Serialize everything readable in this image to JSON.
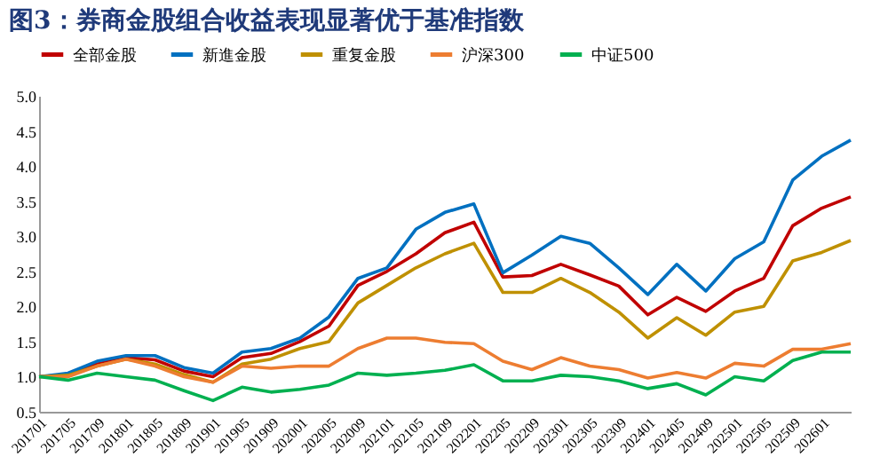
{
  "chart_data": {
    "type": "line",
    "title": "图3：券商金股组合收益表现显著优于基准指数",
    "categories": [
      "201701",
      "201705",
      "201709",
      "201801",
      "201805",
      "201809",
      "201901",
      "201905",
      "201909",
      "202001",
      "202005",
      "202009",
      "202101",
      "202105",
      "202109",
      "202201",
      "202205",
      "202209",
      "202301",
      "202305",
      "202309",
      "202401",
      "202405",
      "202409",
      "202501",
      "202505",
      "202509",
      "202601",
      null
    ],
    "series": [
      {
        "name": "全部金股",
        "color": "#c00000",
        "values": [
          1.0,
          1.03,
          1.18,
          1.27,
          1.24,
          1.08,
          1.0,
          1.27,
          1.33,
          1.5,
          1.72,
          2.3,
          2.5,
          2.75,
          3.05,
          3.2,
          2.42,
          2.44,
          2.6,
          2.45,
          2.29,
          1.88,
          2.13,
          1.93,
          2.22,
          2.4,
          3.15,
          3.4,
          3.56
        ]
      },
      {
        "name": "新進金股",
        "color": "#0070c0",
        "values": [
          1.0,
          1.05,
          1.22,
          1.3,
          1.3,
          1.13,
          1.05,
          1.35,
          1.4,
          1.55,
          1.85,
          2.4,
          2.55,
          3.1,
          3.34,
          3.46,
          2.48,
          2.73,
          3.0,
          2.9,
          2.55,
          2.17,
          2.6,
          2.22,
          2.68,
          2.92,
          3.8,
          4.14,
          4.37
        ]
      },
      {
        "name": "重复金股",
        "color": "#bf9000",
        "values": [
          1.0,
          1.02,
          1.15,
          1.25,
          1.18,
          1.03,
          0.92,
          1.18,
          1.25,
          1.4,
          1.5,
          2.05,
          2.3,
          2.55,
          2.75,
          2.9,
          2.2,
          2.2,
          2.4,
          2.2,
          1.92,
          1.55,
          1.84,
          1.59,
          1.92,
          2.0,
          2.65,
          2.77,
          2.94
        ]
      },
      {
        "name": "沪深300",
        "color": "#ed7d31",
        "values": [
          1.0,
          1.0,
          1.15,
          1.25,
          1.15,
          1.0,
          0.92,
          1.15,
          1.12,
          1.15,
          1.15,
          1.4,
          1.55,
          1.55,
          1.49,
          1.47,
          1.22,
          1.1,
          1.27,
          1.15,
          1.1,
          0.98,
          1.06,
          0.98,
          1.19,
          1.15,
          1.39,
          1.39,
          1.47
        ]
      },
      {
        "name": "中证500",
        "color": "#00b050",
        "values": [
          1.0,
          0.95,
          1.05,
          1.0,
          0.95,
          0.8,
          0.66,
          0.85,
          0.78,
          0.82,
          0.88,
          1.05,
          1.02,
          1.05,
          1.09,
          1.17,
          0.94,
          0.94,
          1.02,
          1.0,
          0.94,
          0.83,
          0.9,
          0.74,
          1.0,
          0.94,
          1.23,
          1.35,
          1.35
        ]
      }
    ],
    "ylim": [
      0.5,
      5.0
    ],
    "yticks": [
      {
        "value": 0.5,
        "label": "0.5"
      },
      {
        "value": 1,
        "label": "1.0"
      },
      {
        "value": 1.5,
        "label": "1.5"
      },
      {
        "value": 2,
        "label": "2.0"
      },
      {
        "value": 2.5,
        "label": "2.5"
      },
      {
        "value": 3,
        "label": "3.0"
      },
      {
        "value": 3.5,
        "label": "3.5"
      },
      {
        "value": 4,
        "label": "4.0"
      },
      {
        "value": 4.5,
        "label": "4.5"
      },
      {
        "value": 5,
        "label": "5.0"
      }
    ],
    "grid": false,
    "legend": "top",
    "marker": "none",
    "line_style": "solid"
  }
}
